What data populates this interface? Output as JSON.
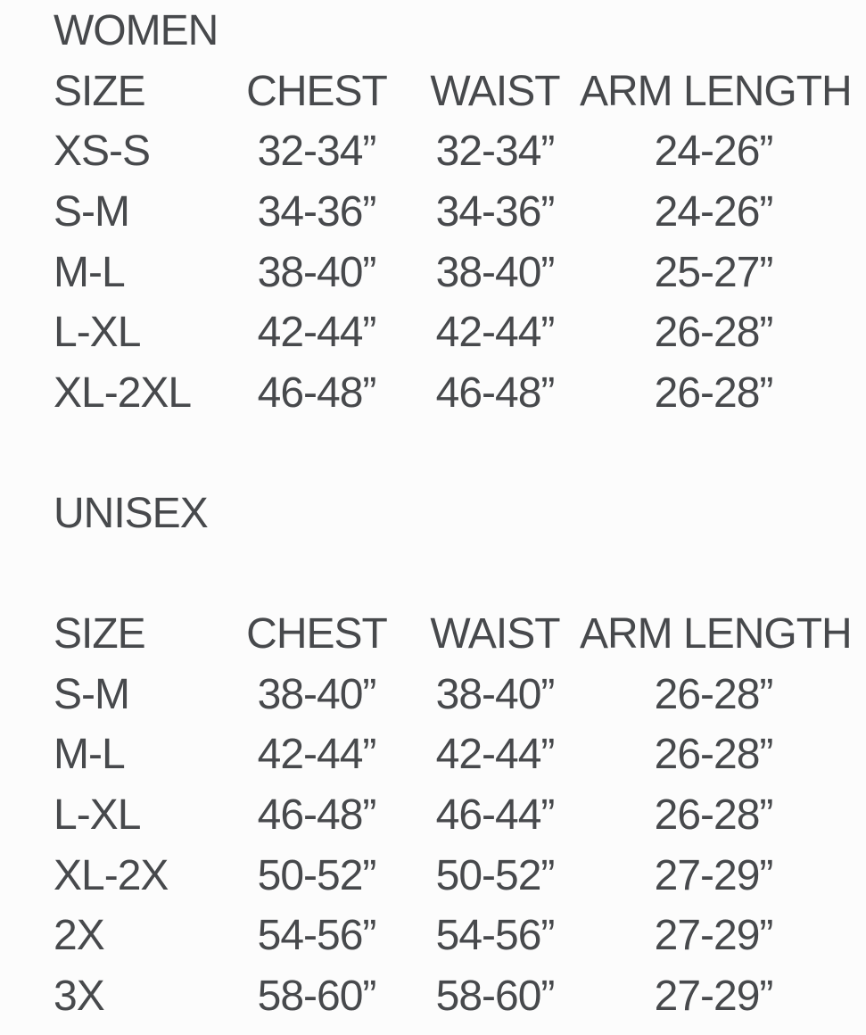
{
  "page": {
    "background_color": "#fcfcfc",
    "text_color": "#47494c"
  },
  "tables": [
    {
      "title": "WOMEN",
      "headers": [
        "SIZE",
        "CHEST",
        "WAIST",
        "ARM LENGTH"
      ],
      "rows": [
        [
          "XS-S",
          "32-34”",
          "32-34”",
          "24-26”"
        ],
        [
          "S-M",
          "34-36”",
          "34-36”",
          "24-26”"
        ],
        [
          "M-L",
          "38-40”",
          "38-40”",
          "25-27”"
        ],
        [
          "L-XL",
          "42-44”",
          "42-44”",
          "26-28”"
        ],
        [
          "XL-2XL",
          "46-48”",
          "46-48”",
          "26-28”"
        ]
      ]
    },
    {
      "title": "UNISEX",
      "headers": [
        "SIZE",
        "CHEST",
        "WAIST",
        "ARM LENGTH"
      ],
      "rows": [
        [
          "S-M",
          "38-40”",
          "38-40”",
          "26-28”"
        ],
        [
          "M-L",
          "42-44”",
          "42-44”",
          "26-28”"
        ],
        [
          "L-XL",
          "46-48”",
          "46-44”",
          "26-28”"
        ],
        [
          "XL-2X",
          "50-52”",
          "50-52”",
          "27-29”"
        ],
        [
          "2X",
          "54-56”",
          "54-56”",
          "27-29”"
        ],
        [
          "3X",
          "58-60”",
          "58-60”",
          "27-29”"
        ]
      ]
    }
  ]
}
